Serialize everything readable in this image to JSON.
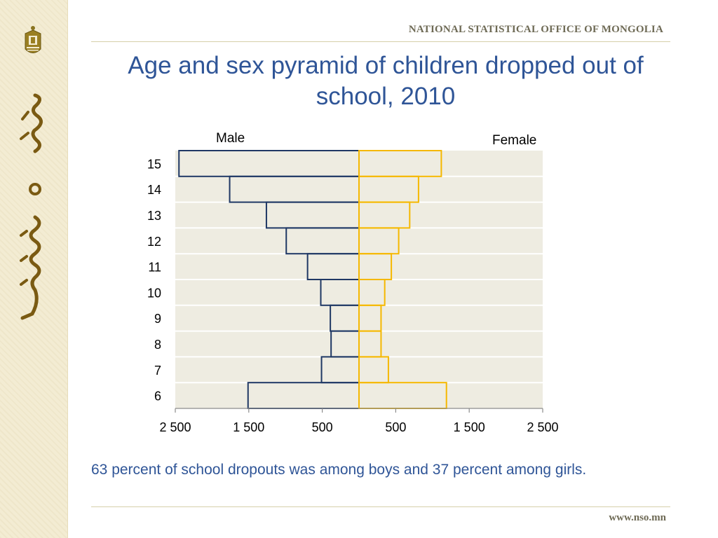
{
  "header": {
    "organization": "NATIONAL STATISTICAL OFFICE OF MONGOLIA"
  },
  "title": "Age and sex pyramid of children dropped out of school, 2010",
  "caption": "63 percent of school dropouts was among boys and 37 percent among girls.",
  "footer": {
    "url": "www.nso.mn"
  },
  "colors": {
    "male": "#1f3864",
    "female": "#f5b800",
    "plot_bg": "#eeece1",
    "title": "#2f5597",
    "grid": "#ffffff"
  },
  "icons": {
    "logo": "nso-emblem-icon",
    "side_script": "mongolian-script-icon"
  },
  "chart_data": {
    "type": "bar",
    "orientation": "horizontal-pyramid",
    "categories": [
      "15",
      "14",
      "13",
      "12",
      "11",
      "10",
      "9",
      "8",
      "7",
      "6"
    ],
    "series": [
      {
        "name": "Male",
        "side": "left",
        "values": [
          2450,
          1760,
          1260,
          990,
          700,
          520,
          390,
          380,
          510,
          1510
        ]
      },
      {
        "name": "Female",
        "side": "right",
        "values": [
          1120,
          810,
          690,
          540,
          440,
          350,
          300,
          300,
          400,
          1190
        ]
      }
    ],
    "xlim": [
      -2500,
      2500
    ],
    "xticks": [
      -2500,
      -1500,
      -500,
      500,
      1500,
      2500
    ],
    "xtick_labels": [
      "2 500",
      "1 500",
      "500",
      "500",
      "1 500",
      "2 500"
    ],
    "grid": "horizontal",
    "legend": "Male top-left, Female top-right"
  }
}
